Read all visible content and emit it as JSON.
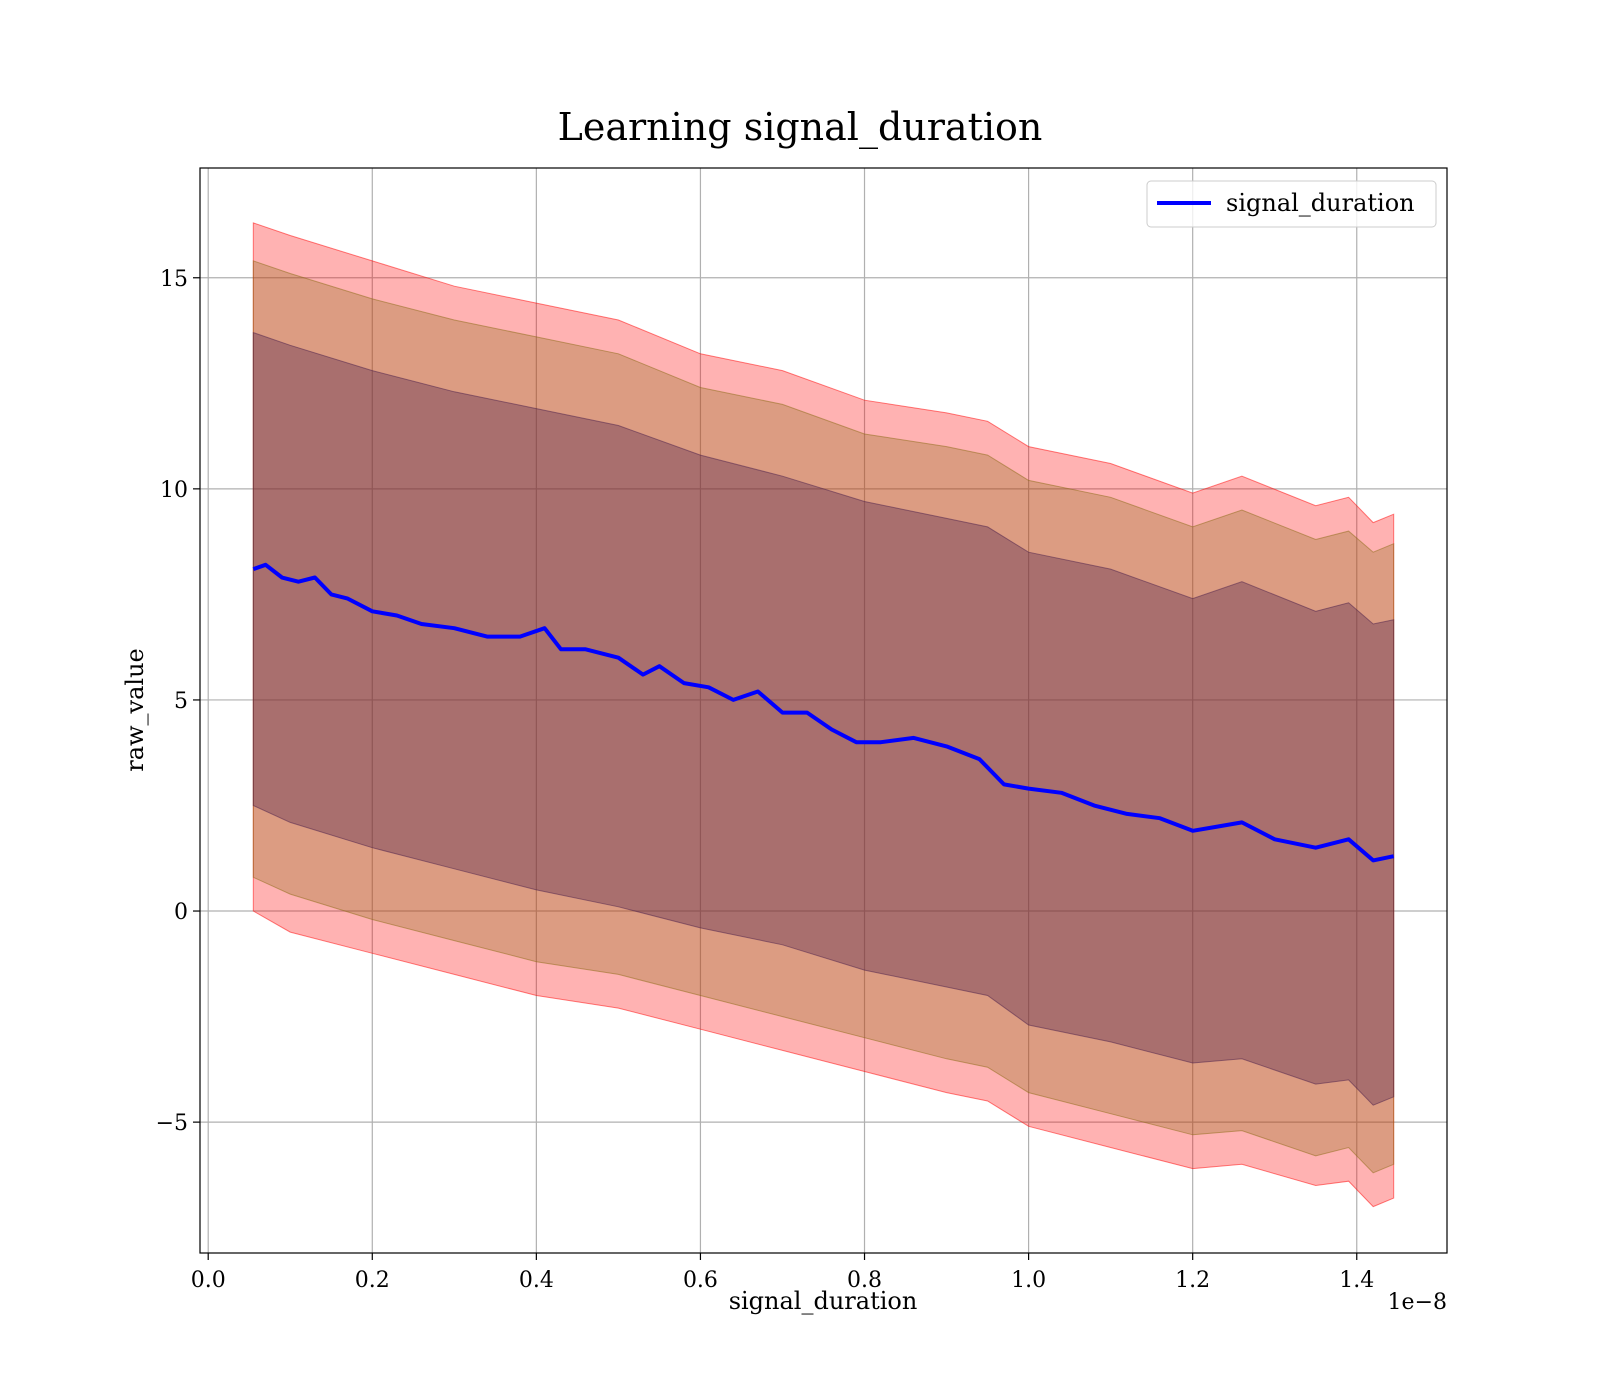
{
  "chart_data": {
    "type": "line",
    "title": "Learning signal_duration",
    "xlabel": "signal_duration",
    "ylabel": "raw_value",
    "x_offset_label": "1e−8",
    "xlim": [
      -0.01,
      1.51
    ],
    "ylim": [
      -8.1,
      17.6
    ],
    "x_ticks": [
      0.0,
      0.2,
      0.4,
      0.6,
      0.8,
      1.0,
      1.2,
      1.4
    ],
    "x_tick_labels": [
      "0.0",
      "0.2",
      "0.4",
      "0.6",
      "0.8",
      "1.0",
      "1.2",
      "1.4"
    ],
    "y_ticks": [
      -5,
      0,
      5,
      10,
      15
    ],
    "y_tick_labels": [
      "−5",
      "0",
      "5",
      "10",
      "15"
    ],
    "grid": true,
    "legend_position": "top-right",
    "series": [
      {
        "name": "signal_duration",
        "color": "#0000ff",
        "x": [
          0.055,
          0.07,
          0.09,
          0.11,
          0.13,
          0.15,
          0.17,
          0.2,
          0.23,
          0.26,
          0.3,
          0.34,
          0.38,
          0.41,
          0.43,
          0.46,
          0.5,
          0.53,
          0.55,
          0.58,
          0.61,
          0.64,
          0.67,
          0.7,
          0.73,
          0.76,
          0.79,
          0.82,
          0.86,
          0.9,
          0.94,
          0.97,
          1.0,
          1.04,
          1.08,
          1.12,
          1.16,
          1.2,
          1.23,
          1.26,
          1.3,
          1.35,
          1.39,
          1.42,
          1.445
        ],
        "y": [
          8.1,
          8.2,
          7.9,
          7.8,
          7.9,
          7.5,
          7.4,
          7.1,
          7.0,
          6.8,
          6.7,
          6.5,
          6.5,
          6.7,
          6.2,
          6.2,
          6.0,
          5.6,
          5.8,
          5.4,
          5.3,
          5.0,
          5.2,
          4.7,
          4.7,
          4.3,
          4.0,
          4.0,
          4.1,
          3.9,
          3.6,
          3.0,
          2.9,
          2.8,
          2.5,
          2.3,
          2.2,
          1.9,
          2.0,
          2.1,
          1.7,
          1.5,
          1.7,
          1.2,
          1.3
        ]
      }
    ],
    "bands": [
      {
        "color": "#ff0000",
        "opacity": 0.3,
        "x": [
          0.055,
          0.1,
          0.2,
          0.3,
          0.4,
          0.5,
          0.6,
          0.7,
          0.8,
          0.9,
          0.95,
          1.0,
          1.1,
          1.2,
          1.26,
          1.35,
          1.39,
          1.42,
          1.445
        ],
        "upper": [
          16.3,
          16.0,
          15.4,
          14.8,
          14.4,
          14.0,
          13.2,
          12.8,
          12.1,
          11.8,
          11.6,
          11.0,
          10.6,
          9.9,
          10.3,
          9.6,
          9.8,
          9.2,
          9.4
        ],
        "lower": [
          0.0,
          -0.5,
          -1.0,
          -1.5,
          -2.0,
          -2.3,
          -2.8,
          -3.3,
          -3.8,
          -4.3,
          -4.5,
          -5.1,
          -5.6,
          -6.1,
          -6.0,
          -6.5,
          -6.4,
          -7.0,
          -6.8
        ]
      },
      {
        "color": "#8b6914",
        "opacity": 0.3,
        "x": [
          0.055,
          0.1,
          0.2,
          0.3,
          0.4,
          0.5,
          0.6,
          0.7,
          0.8,
          0.9,
          0.95,
          1.0,
          1.1,
          1.2,
          1.26,
          1.35,
          1.39,
          1.42,
          1.445
        ],
        "upper": [
          15.4,
          15.1,
          14.5,
          14.0,
          13.6,
          13.2,
          12.4,
          12.0,
          11.3,
          11.0,
          10.8,
          10.2,
          9.8,
          9.1,
          9.5,
          8.8,
          9.0,
          8.5,
          8.7
        ],
        "lower": [
          0.8,
          0.4,
          -0.2,
          -0.7,
          -1.2,
          -1.5,
          -2.0,
          -2.5,
          -3.0,
          -3.5,
          -3.7,
          -4.3,
          -4.8,
          -5.3,
          -5.2,
          -5.8,
          -5.6,
          -6.2,
          -6.0
        ]
      },
      {
        "color": "#4a1e4a",
        "opacity": 0.35,
        "x": [
          0.055,
          0.1,
          0.2,
          0.3,
          0.4,
          0.5,
          0.6,
          0.7,
          0.8,
          0.9,
          0.95,
          1.0,
          1.1,
          1.2,
          1.26,
          1.35,
          1.39,
          1.42,
          1.445
        ],
        "upper": [
          13.7,
          13.4,
          12.8,
          12.3,
          11.9,
          11.5,
          10.8,
          10.3,
          9.7,
          9.3,
          9.1,
          8.5,
          8.1,
          7.4,
          7.8,
          7.1,
          7.3,
          6.8,
          6.9
        ],
        "lower": [
          2.5,
          2.1,
          1.5,
          1.0,
          0.5,
          0.1,
          -0.4,
          -0.8,
          -1.4,
          -1.8,
          -2.0,
          -2.7,
          -3.1,
          -3.6,
          -3.5,
          -4.1,
          -4.0,
          -4.6,
          -4.4
        ]
      }
    ]
  }
}
